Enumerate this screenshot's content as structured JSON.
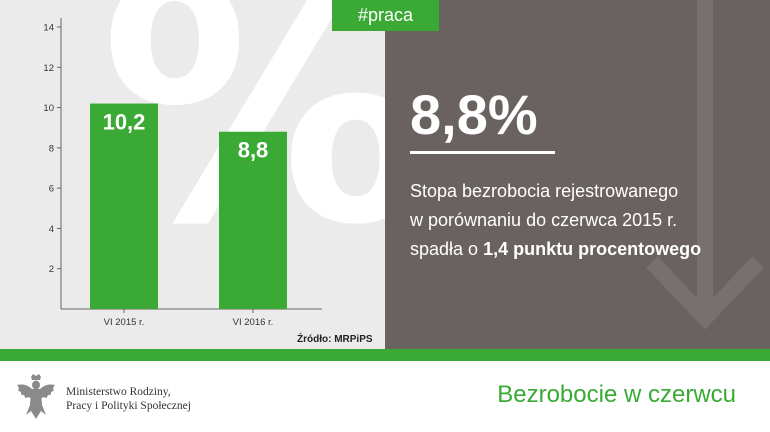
{
  "tag": "#praca",
  "headline": "8,8%",
  "description": {
    "line1": "Stopa bezrobocia rejestrowanego",
    "line2": "w porównaniu do czerwca 2015 r.",
    "line3_prefix": "spadła o ",
    "line3_highlight": "1,4 punktu procentowego"
  },
  "source": "Źródło: MRPiPS",
  "ministry": {
    "line1": "Ministerstwo Rodziny,",
    "line2": "Pracy i Polityki Społecznej"
  },
  "footer_title": "Bezrobocie w czerwcu",
  "colors": {
    "accent_green": "#3aaa35",
    "panel_gray": "#6a6260",
    "chart_bg": "#ebebeb"
  },
  "decorations": {
    "background_symbol": "%",
    "arrow": "down-arrow-icon",
    "emblem": "eagle-emblem-icon"
  },
  "chart_data": {
    "type": "bar",
    "categories": [
      "VI 2015 r.",
      "VI 2016 r."
    ],
    "values": [
      10.2,
      8.8
    ],
    "value_labels": [
      "10,2",
      "8,8"
    ],
    "yticks": [
      2,
      4,
      6,
      8,
      10,
      12,
      14
    ],
    "ylim": [
      0,
      14
    ],
    "title": "",
    "xlabel": "",
    "ylabel": "",
    "grid": false
  }
}
